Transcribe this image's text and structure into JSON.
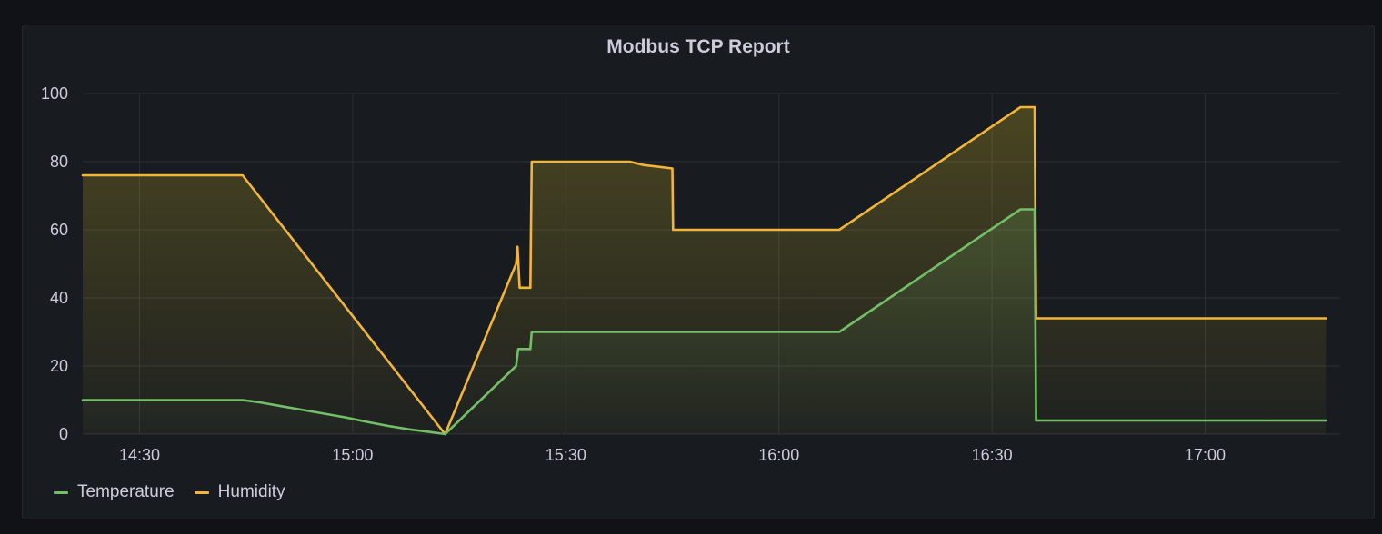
{
  "panel": {
    "title": "Modbus TCP Report"
  },
  "colors": {
    "temperature": "#73bf69",
    "humidity": "#fade2a",
    "humidity_line": "#f2b538",
    "grid": "#2c2f35",
    "text": "#ccccdc",
    "background": "#181b1f"
  },
  "chart_data": {
    "type": "area",
    "title": "Modbus TCP Report",
    "xlabel": "",
    "ylabel": "",
    "grid": true,
    "legend_position": "bottom-left",
    "x_ticks": [
      "14:30",
      "15:00",
      "15:30",
      "16:00",
      "16:30",
      "17:00"
    ],
    "y_ticks": [
      0,
      20,
      40,
      60,
      80,
      100
    ],
    "xlim": [
      "14:22",
      "17:19"
    ],
    "ylim": [
      0,
      100
    ],
    "series": [
      {
        "name": "Temperature",
        "color": "#73bf69",
        "points": [
          [
            "14:22",
            10
          ],
          [
            "14:44.5",
            10
          ],
          [
            "14:47",
            9.3
          ],
          [
            "14:50",
            8.2
          ],
          [
            "14:53",
            7.1
          ],
          [
            "14:56",
            6.0
          ],
          [
            "14:59",
            4.9
          ],
          [
            "15:02",
            3.6
          ],
          [
            "15:05",
            2.4
          ],
          [
            "15:08",
            1.4
          ],
          [
            "15:11",
            0.6
          ],
          [
            "15:13",
            0
          ],
          [
            "15:23",
            20
          ],
          [
            "15:23.3",
            25
          ],
          [
            "15:25",
            25
          ],
          [
            "15:25.2",
            30
          ],
          [
            "16:08.5",
            30
          ],
          [
            "16:34",
            66
          ],
          [
            "16:36",
            66
          ],
          [
            "16:36.2",
            4
          ],
          [
            "17:17",
            4
          ]
        ]
      },
      {
        "name": "Humidity",
        "color": "#f2b538",
        "points": [
          [
            "14:22",
            76
          ],
          [
            "14:44.5",
            76
          ],
          [
            "15:13",
            0
          ],
          [
            "15:23",
            50
          ],
          [
            "15:23.2",
            55
          ],
          [
            "15:23.5",
            43
          ],
          [
            "15:25",
            43
          ],
          [
            "15:25.2",
            80
          ],
          [
            "15:39",
            80
          ],
          [
            "15:41",
            79
          ],
          [
            "15:43",
            78.5
          ],
          [
            "15:45",
            78
          ],
          [
            "15:45.1",
            60
          ],
          [
            "16:08.5",
            60
          ],
          [
            "16:34",
            96
          ],
          [
            "16:36",
            96
          ],
          [
            "16:36.2",
            34
          ],
          [
            "17:17",
            34
          ]
        ]
      }
    ]
  }
}
